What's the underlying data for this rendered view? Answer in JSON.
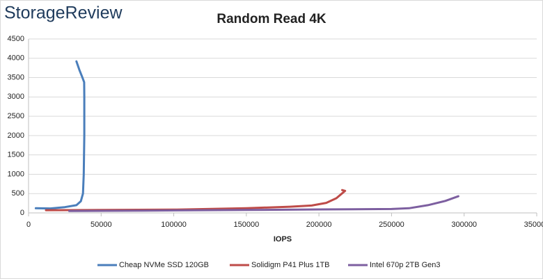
{
  "brand": "StorageReview",
  "chart_data": {
    "type": "line",
    "title": "Random Read 4K",
    "x_label": "IOPS",
    "xlim": [
      0,
      350000
    ],
    "xticks": [
      0,
      50000,
      100000,
      150000,
      200000,
      250000,
      300000,
      350000
    ],
    "ylim": [
      0,
      4500
    ],
    "yticks": [
      0,
      500,
      1000,
      1500,
      2000,
      2500,
      3000,
      3500,
      4000,
      4500
    ],
    "grid": true,
    "legend": "bottom",
    "series": [
      {
        "name": "Cheap NVMe SSD 120GB",
        "color": "#4a7ebb",
        "x": [
          5000,
          15000,
          25000,
          33000,
          36000,
          37500,
          38000,
          38400,
          38400,
          38300,
          36800,
          35000,
          33000
        ],
        "values": [
          120,
          115,
          150,
          200,
          300,
          500,
          1000,
          2000,
          3000,
          3380,
          3530,
          3700,
          3920
        ]
      },
      {
        "name": "Solidigm P41 Plus 1TB",
        "color": "#be4b48",
        "x": [
          12000,
          50000,
          100000,
          150000,
          180000,
          195000,
          205000,
          212000,
          218000,
          216000
        ],
        "values": [
          70,
          75,
          85,
          120,
          160,
          190,
          260,
          380,
          570,
          590
        ]
      },
      {
        "name": "Intel 670p 2TB Gen3",
        "color": "#7d5fa0",
        "x": [
          28000,
          80000,
          150000,
          200000,
          250000,
          262000,
          275000,
          287000,
          296000
        ],
        "values": [
          50,
          60,
          75,
          90,
          100,
          120,
          200,
          310,
          430
        ]
      }
    ]
  }
}
